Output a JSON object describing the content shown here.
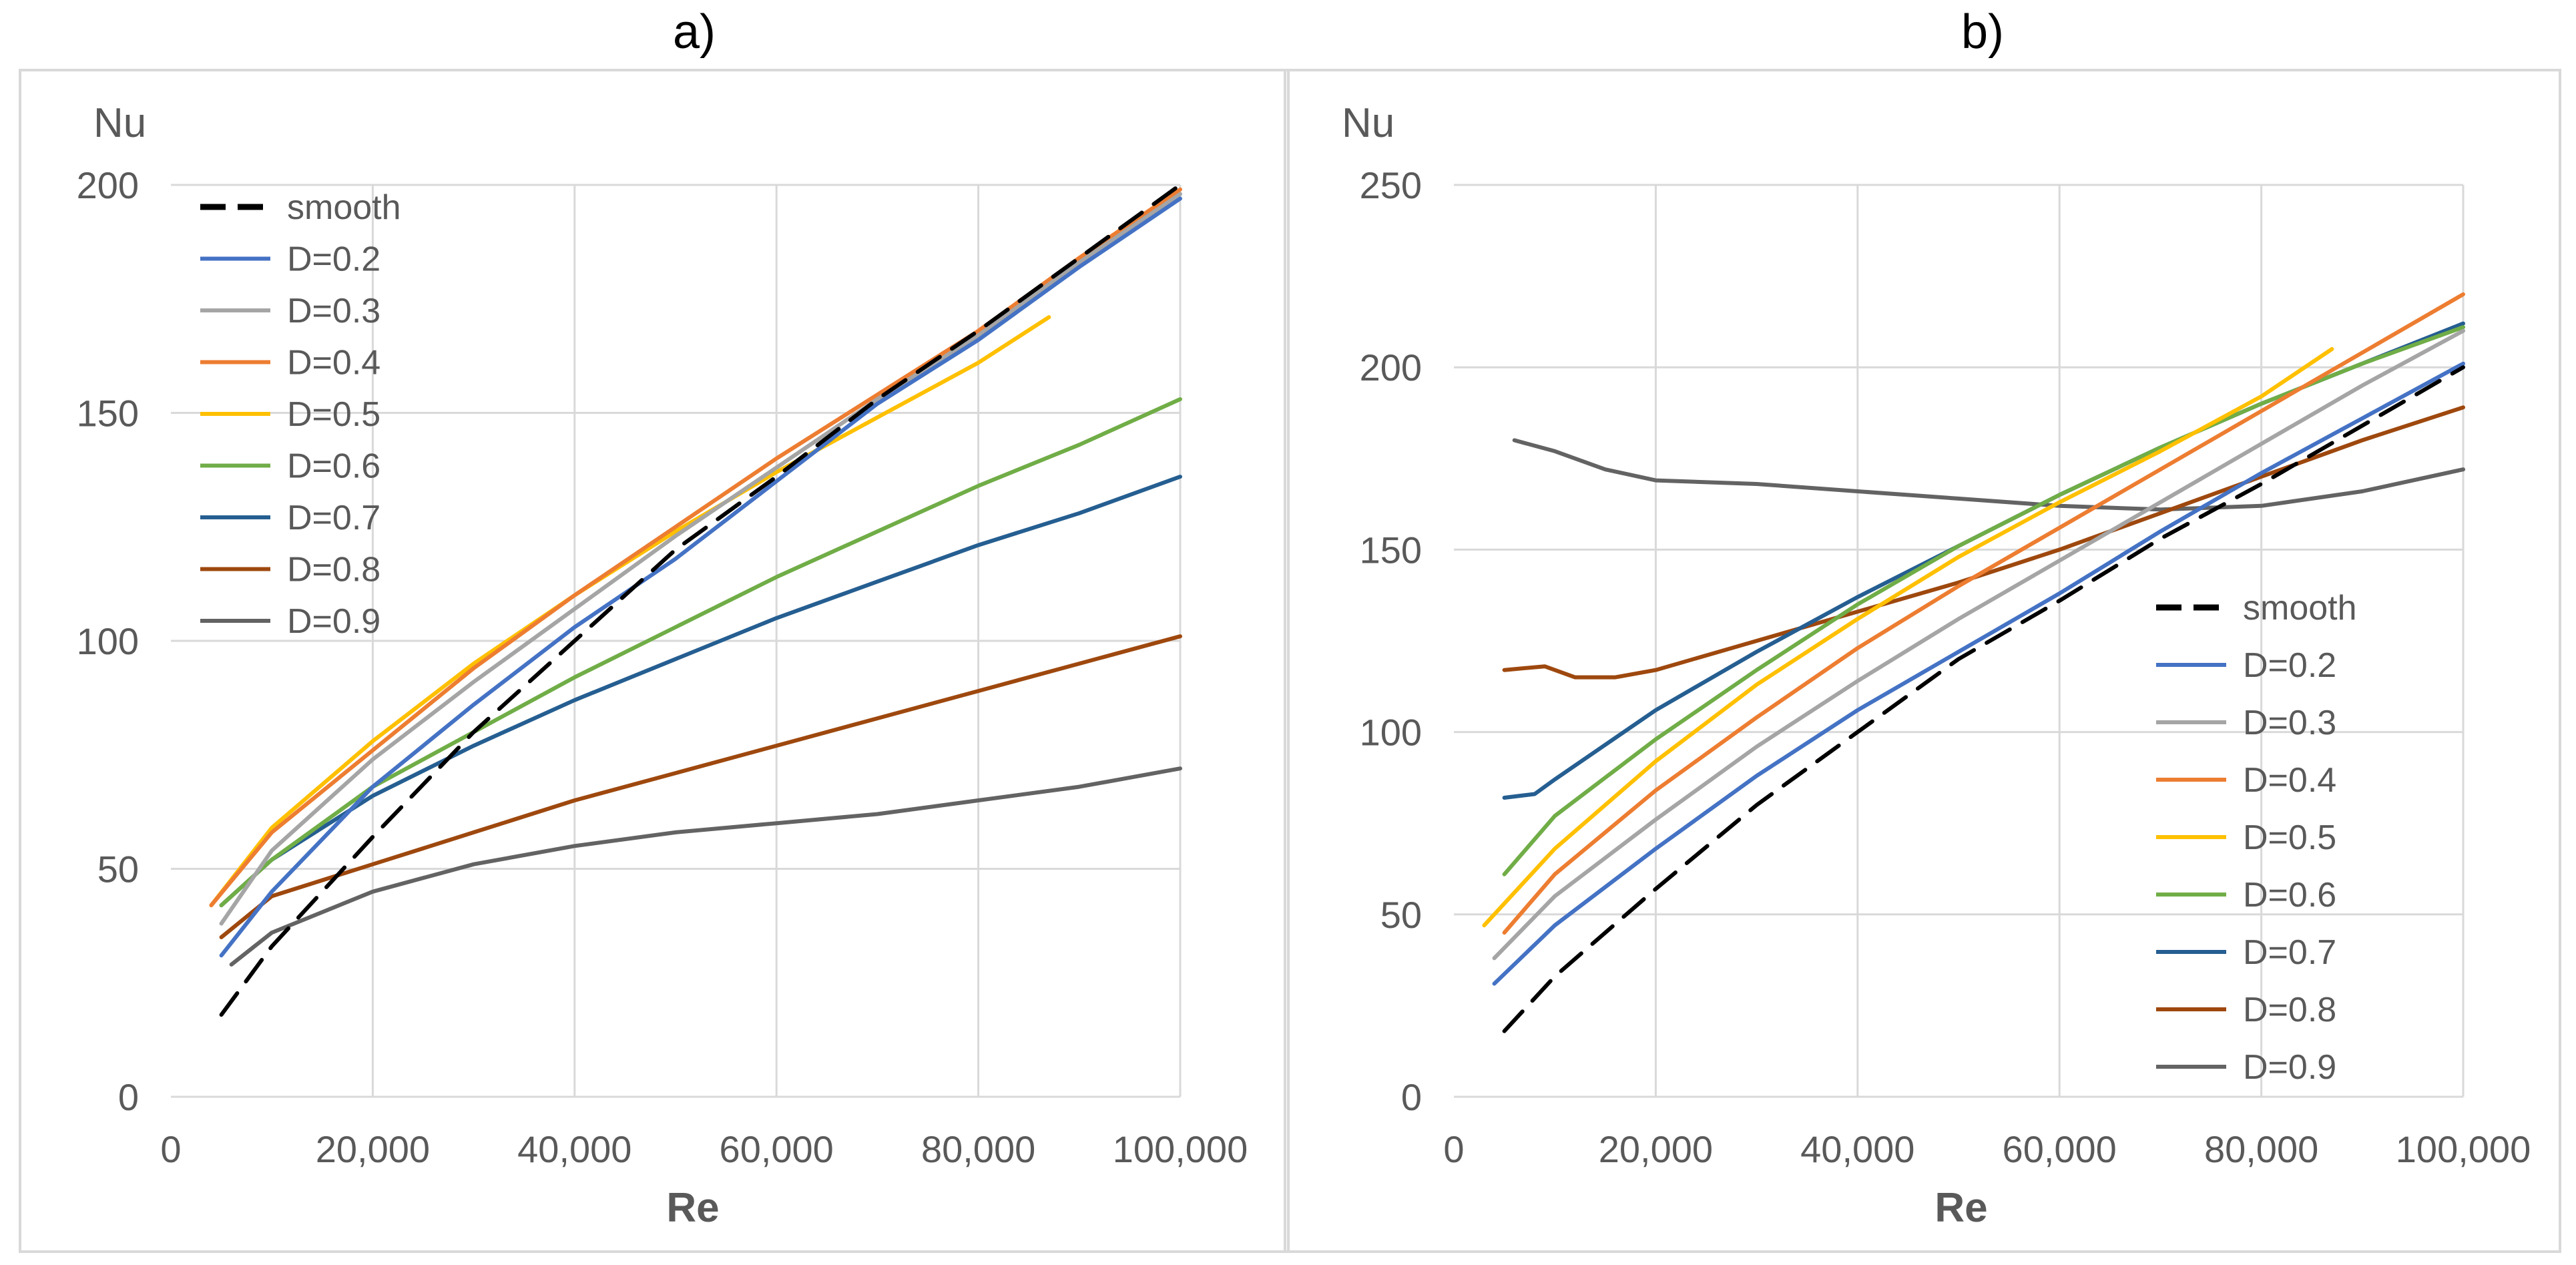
{
  "chart_data": [
    {
      "type": "line",
      "panel_label": "a)",
      "ylabel": "Nu",
      "xlabel": "Re",
      "xlim": [
        0,
        100000
      ],
      "ylim": [
        0,
        200
      ],
      "xticks": [
        0,
        20000,
        40000,
        60000,
        80000,
        100000
      ],
      "xtick_labels": [
        "0",
        "20,000",
        "40,000",
        "60,000",
        "80,000",
        "100,000"
      ],
      "yticks": [
        0,
        50,
        100,
        150,
        200
      ],
      "ytick_labels": [
        "0",
        "50",
        "100",
        "150",
        "200"
      ],
      "grid": true,
      "legend_position": "top-left",
      "series": [
        {
          "name": "smooth",
          "color": "#000000",
          "dashed": true,
          "points": [
            [
              5000,
              18
            ],
            [
              10000,
              33
            ],
            [
              20000,
              57
            ],
            [
              30000,
              80
            ],
            [
              40000,
              100
            ],
            [
              50000,
              120
            ],
            [
              60000,
              136
            ],
            [
              70000,
              153
            ],
            [
              80000,
              168
            ],
            [
              90000,
              184
            ],
            [
              100000,
              200
            ]
          ]
        },
        {
          "name": "D=0.2",
          "color": "#4472c4",
          "dashed": false,
          "points": [
            [
              5000,
              31
            ],
            [
              10000,
              45
            ],
            [
              20000,
              68
            ],
            [
              30000,
              86
            ],
            [
              40000,
              103
            ],
            [
              50000,
              118
            ],
            [
              60000,
              135
            ],
            [
              70000,
              152
            ],
            [
              80000,
              166
            ],
            [
              90000,
              182
            ],
            [
              100000,
              197
            ]
          ]
        },
        {
          "name": "D=0.3",
          "color": "#a5a5a5",
          "dashed": false,
          "points": [
            [
              5000,
              38
            ],
            [
              10000,
              54
            ],
            [
              20000,
              74
            ],
            [
              30000,
              91
            ],
            [
              40000,
              107
            ],
            [
              50000,
              123
            ],
            [
              60000,
              138
            ],
            [
              70000,
              153
            ],
            [
              80000,
              167
            ],
            [
              90000,
              183
            ],
            [
              100000,
              198
            ]
          ]
        },
        {
          "name": "D=0.4",
          "color": "#ed7d31",
          "dashed": false,
          "points": [
            [
              4000,
              42
            ],
            [
              10000,
              58
            ],
            [
              20000,
              76
            ],
            [
              30000,
              94
            ],
            [
              40000,
              110
            ],
            [
              50000,
              125
            ],
            [
              60000,
              140
            ],
            [
              70000,
              154
            ],
            [
              80000,
              168
            ],
            [
              90000,
              184
            ],
            [
              100000,
              199
            ]
          ]
        },
        {
          "name": "D=0.5",
          "color": "#ffc000",
          "dashed": false,
          "points": [
            [
              4000,
              42
            ],
            [
              10000,
              59
            ],
            [
              20000,
              78
            ],
            [
              30000,
              95
            ],
            [
              40000,
              110
            ],
            [
              50000,
              124
            ],
            [
              60000,
              137
            ],
            [
              70000,
              149
            ],
            [
              80000,
              161
            ],
            [
              87000,
              171
            ]
          ]
        },
        {
          "name": "D=0.6",
          "color": "#70ad47",
          "dashed": false,
          "points": [
            [
              5000,
              42
            ],
            [
              10000,
              52
            ],
            [
              20000,
              68
            ],
            [
              30000,
              80
            ],
            [
              40000,
              92
            ],
            [
              50000,
              103
            ],
            [
              60000,
              114
            ],
            [
              70000,
              124
            ],
            [
              80000,
              134
            ],
            [
              90000,
              143
            ],
            [
              100000,
              153
            ]
          ]
        },
        {
          "name": "D=0.7",
          "color": "#255e91",
          "dashed": false,
          "points": [
            [
              5000,
              42
            ],
            [
              10000,
              52
            ],
            [
              20000,
              66
            ],
            [
              30000,
              77
            ],
            [
              40000,
              87
            ],
            [
              50000,
              96
            ],
            [
              60000,
              105
            ],
            [
              70000,
              113
            ],
            [
              80000,
              121
            ],
            [
              90000,
              128
            ],
            [
              100000,
              136
            ]
          ]
        },
        {
          "name": "D=0.8",
          "color": "#9e480e",
          "dashed": false,
          "points": [
            [
              5000,
              35
            ],
            [
              10000,
              44
            ],
            [
              20000,
              51
            ],
            [
              30000,
              58
            ],
            [
              40000,
              65
            ],
            [
              50000,
              71
            ],
            [
              60000,
              77
            ],
            [
              70000,
              83
            ],
            [
              80000,
              89
            ],
            [
              90000,
              95
            ],
            [
              100000,
              101
            ]
          ]
        },
        {
          "name": "D=0.9",
          "color": "#636363",
          "dashed": false,
          "points": [
            [
              6000,
              29
            ],
            [
              10000,
              36
            ],
            [
              20000,
              45
            ],
            [
              30000,
              51
            ],
            [
              40000,
              55
            ],
            [
              50000,
              58
            ],
            [
              60000,
              60
            ],
            [
              70000,
              62
            ],
            [
              80000,
              65
            ],
            [
              90000,
              68
            ],
            [
              100000,
              72
            ]
          ]
        }
      ]
    },
    {
      "type": "line",
      "panel_label": "b)",
      "ylabel": "Nu",
      "xlabel": "Re",
      "xlim": [
        0,
        100000
      ],
      "ylim": [
        0,
        250
      ],
      "xticks": [
        0,
        20000,
        40000,
        60000,
        80000,
        100000
      ],
      "xtick_labels": [
        "0",
        "20,000",
        "40,000",
        "60,000",
        "80,000",
        "100,000"
      ],
      "yticks": [
        0,
        50,
        100,
        150,
        200,
        250
      ],
      "ytick_labels": [
        "0",
        "50",
        "100",
        "150",
        "200",
        "250"
      ],
      "grid": true,
      "legend_position": "bottom-right",
      "series": [
        {
          "name": "smooth",
          "color": "#000000",
          "dashed": true,
          "points": [
            [
              5000,
              18
            ],
            [
              10000,
              33
            ],
            [
              20000,
              57
            ],
            [
              30000,
              80
            ],
            [
              40000,
              100
            ],
            [
              50000,
              120
            ],
            [
              60000,
              136
            ],
            [
              70000,
              153
            ],
            [
              80000,
              168
            ],
            [
              90000,
              184
            ],
            [
              100000,
              200
            ]
          ]
        },
        {
          "name": "D=0.2",
          "color": "#4472c4",
          "dashed": false,
          "points": [
            [
              4000,
              31
            ],
            [
              10000,
              47
            ],
            [
              20000,
              68
            ],
            [
              30000,
              88
            ],
            [
              40000,
              106
            ],
            [
              50000,
              122
            ],
            [
              60000,
              138
            ],
            [
              70000,
              155
            ],
            [
              80000,
              171
            ],
            [
              90000,
              186
            ],
            [
              100000,
              201
            ]
          ]
        },
        {
          "name": "D=0.3",
          "color": "#a5a5a5",
          "dashed": false,
          "points": [
            [
              4000,
              38
            ],
            [
              10000,
              55
            ],
            [
              20000,
              76
            ],
            [
              30000,
              96
            ],
            [
              40000,
              114
            ],
            [
              50000,
              131
            ],
            [
              60000,
              147
            ],
            [
              70000,
              163
            ],
            [
              80000,
              179
            ],
            [
              90000,
              195
            ],
            [
              100000,
              210
            ]
          ]
        },
        {
          "name": "D=0.4",
          "color": "#ed7d31",
          "dashed": false,
          "points": [
            [
              5000,
              45
            ],
            [
              10000,
              61
            ],
            [
              20000,
              84
            ],
            [
              30000,
              104
            ],
            [
              40000,
              123
            ],
            [
              50000,
              140
            ],
            [
              60000,
              156
            ],
            [
              70000,
              172
            ],
            [
              80000,
              188
            ],
            [
              90000,
              204
            ],
            [
              100000,
              220
            ]
          ]
        },
        {
          "name": "D=0.5",
          "color": "#ffc000",
          "dashed": false,
          "points": [
            [
              3000,
              47
            ],
            [
              10000,
              68
            ],
            [
              20000,
              92
            ],
            [
              30000,
              113
            ],
            [
              40000,
              131
            ],
            [
              50000,
              148
            ],
            [
              60000,
              163
            ],
            [
              70000,
              177
            ],
            [
              80000,
              192
            ],
            [
              87000,
              205
            ]
          ]
        },
        {
          "name": "D=0.6",
          "color": "#70ad47",
          "dashed": false,
          "points": [
            [
              5000,
              61
            ],
            [
              10000,
              77
            ],
            [
              20000,
              98
            ],
            [
              30000,
              117
            ],
            [
              40000,
              135
            ],
            [
              50000,
              151
            ],
            [
              60000,
              165
            ],
            [
              70000,
              178
            ],
            [
              80000,
              190
            ],
            [
              90000,
              201
            ],
            [
              100000,
              211
            ]
          ]
        },
        {
          "name": "D=0.7",
          "color": "#255e91",
          "dashed": false,
          "points": [
            [
              5000,
              82
            ],
            [
              8000,
              83
            ],
            [
              10000,
              87
            ],
            [
              20000,
              106
            ],
            [
              30000,
              122
            ],
            [
              40000,
              137
            ],
            [
              50000,
              151
            ],
            [
              60000,
              165
            ],
            [
              70000,
              178
            ],
            [
              80000,
              190
            ],
            [
              90000,
              201
            ],
            [
              100000,
              212
            ]
          ]
        },
        {
          "name": "D=0.8",
          "color": "#9e480e",
          "dashed": false,
          "points": [
            [
              5000,
              117
            ],
            [
              9000,
              118
            ],
            [
              12000,
              115
            ],
            [
              16000,
              115
            ],
            [
              20000,
              117
            ],
            [
              30000,
              125
            ],
            [
              40000,
              133
            ],
            [
              50000,
              141
            ],
            [
              60000,
              150
            ],
            [
              70000,
              160
            ],
            [
              80000,
              170
            ],
            [
              90000,
              180
            ],
            [
              100000,
              189
            ]
          ]
        },
        {
          "name": "D=0.9",
          "color": "#636363",
          "dashed": false,
          "points": [
            [
              6000,
              180
            ],
            [
              10000,
              177
            ],
            [
              15000,
              172
            ],
            [
              20000,
              169
            ],
            [
              30000,
              168
            ],
            [
              40000,
              166
            ],
            [
              50000,
              164
            ],
            [
              60000,
              162
            ],
            [
              70000,
              161
            ],
            [
              80000,
              162
            ],
            [
              90000,
              166
            ],
            [
              100000,
              172
            ]
          ]
        }
      ]
    }
  ]
}
